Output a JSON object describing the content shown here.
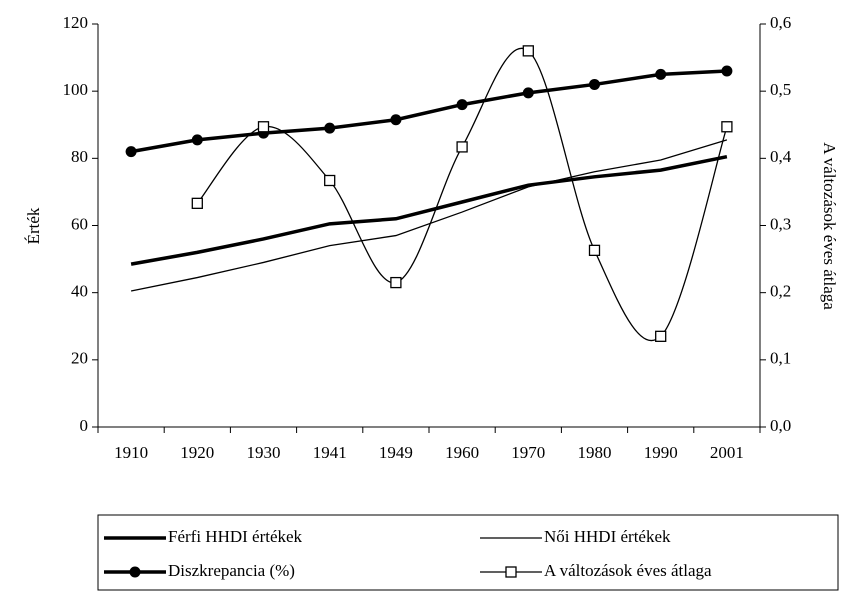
{
  "chart_data": {
    "type": "line",
    "y_label": "Érték",
    "y2_label": "A változások éves átlaga",
    "categories": [
      "1910",
      "1920",
      "1930",
      "1941",
      "1949",
      "1960",
      "1970",
      "1980",
      "1990",
      "2001"
    ],
    "ylim": [
      0,
      120
    ],
    "yticks": [
      0,
      20,
      40,
      60,
      80,
      100,
      120
    ],
    "y2lim": [
      0,
      0.6
    ],
    "y2ticks": [
      {
        "value": 0,
        "label": "0,0"
      },
      {
        "value": 0.1,
        "label": "0,1"
      },
      {
        "value": 0.2,
        "label": "0,2"
      },
      {
        "value": 0.3,
        "label": "0,3"
      },
      {
        "value": 0.4,
        "label": "0,4"
      },
      {
        "value": 0.5,
        "label": "0,5"
      },
      {
        "value": 0.6,
        "label": "0,6"
      }
    ],
    "series": [
      {
        "name": "Férfi HHDI értékek",
        "color": "#000000",
        "weight": "thick",
        "marker": null,
        "values": [
          48.5,
          52,
          56,
          60.5,
          62,
          67,
          72,
          74.5,
          76.5,
          80.5
        ]
      },
      {
        "name": "Női HHDI értékek",
        "color": "#000000",
        "weight": "thin",
        "marker": null,
        "values": [
          40.5,
          44.5,
          49,
          54,
          57,
          64,
          71.5,
          76,
          79.5,
          85.5
        ]
      },
      {
        "name": "Diszkrepancia (%)",
        "color": "#000000",
        "weight": "thick",
        "marker": "circle",
        "values": [
          82,
          85.5,
          87.5,
          89,
          91.5,
          96,
          99.5,
          102,
          105,
          106
        ]
      },
      {
        "name": "A változások éves átlaga",
        "color": "#000000",
        "weight": "thin",
        "marker": "square",
        "axis": "y2",
        "smooth": true,
        "values": [
          null,
          0.333,
          0.447,
          0.367,
          0.215,
          0.417,
          0.56,
          0.263,
          0.135,
          0.447
        ]
      }
    ]
  }
}
